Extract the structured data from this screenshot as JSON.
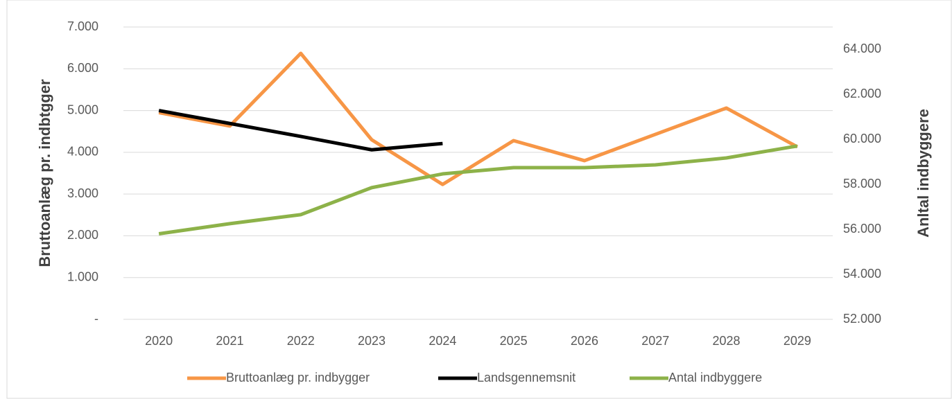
{
  "chart_data": {
    "type": "line",
    "y_label": "Bruttoanlæg pr. indbtgger",
    "y2_label": "Anltal indbyggere",
    "categories": [
      "2020",
      "2021",
      "2022",
      "2023",
      "2024",
      "2025",
      "2026",
      "2027",
      "2028",
      "2029"
    ],
    "series": [
      {
        "name": "Bruttoanlæg pr. indbygger",
        "color": "#f79646",
        "values": [
          4950,
          4630,
          6370,
          4300,
          3230,
          4280,
          3800,
          4430,
          5060,
          4130
        ]
      },
      {
        "name": "Landsgennemsnit",
        "color": "#000000",
        "values": [
          5000,
          4690,
          4380,
          4060,
          4210,
          null,
          null,
          null,
          null,
          null
        ]
      },
      {
        "name": "Antal indbyggere",
        "color": "#8db249",
        "axis": "y2",
        "values": [
          55800,
          56250,
          56650,
          57850,
          58460,
          58740,
          58740,
          58860,
          59170,
          59700
        ]
      }
    ],
    "ylim": [
      0,
      7000
    ],
    "yticks": [
      {
        "value": 0,
        "label": "-"
      },
      {
        "value": 1000,
        "label": "1.000"
      },
      {
        "value": 2000,
        "label": "2.000"
      },
      {
        "value": 3000,
        "label": "3.000"
      },
      {
        "value": 4000,
        "label": "4.000"
      },
      {
        "value": 5000,
        "label": "5.000"
      },
      {
        "value": 6000,
        "label": "6.000"
      },
      {
        "value": 7000,
        "label": "7.000"
      }
    ],
    "y2lim": [
      52000,
      64000
    ],
    "y2ticks": [
      {
        "value": 52000,
        "label": "52.000"
      },
      {
        "value": 54000,
        "label": "54.000"
      },
      {
        "value": 56000,
        "label": "56.000"
      },
      {
        "value": 58000,
        "label": "58.000"
      },
      {
        "value": 60000,
        "label": "60.000"
      },
      {
        "value": 62000,
        "label": "62.000"
      },
      {
        "value": 64000,
        "label": "64.000"
      }
    ],
    "grid": true,
    "legend": "bottom"
  }
}
